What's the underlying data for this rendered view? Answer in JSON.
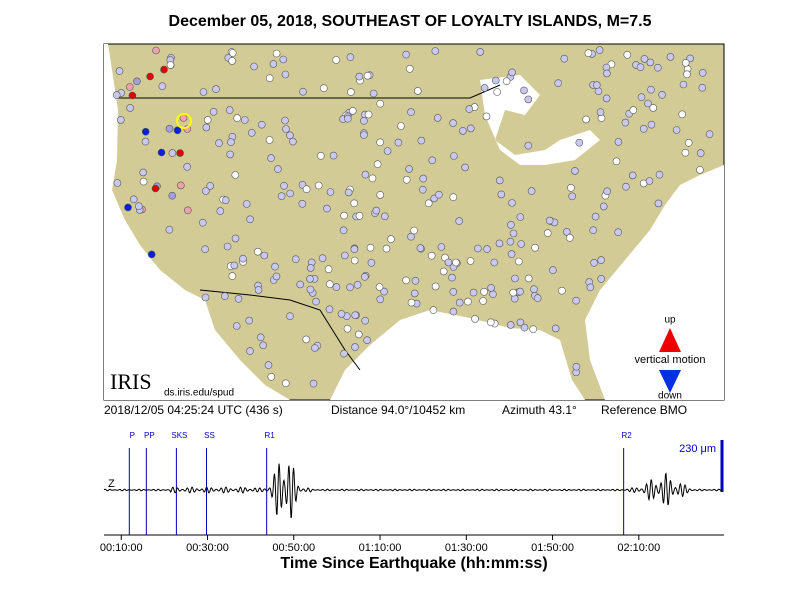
{
  "title": "December 05, 2018, SOUTHEAST OF LOYALTY ISLANDS, M=7.5",
  "map": {
    "logo": "IRIS",
    "url": "ds.iris.edu/spud",
    "legend": {
      "up": "up",
      "label": "vertical motion",
      "down": "down"
    }
  },
  "info": {
    "time": "2018/12/05 04:25:24 UTC (436 s)",
    "distance": "Distance  94.0°/10452 km",
    "azimuth": "Azimuth  43.1°",
    "reference": "Reference BMO"
  },
  "seismogram": {
    "channel": "Z",
    "scale": "230 μm",
    "xlabel": "Time Since Earthquake (hh:mm:ss)",
    "xlim": [
      360,
      8985
    ],
    "xticks": [
      {
        "value": 600,
        "label": "00:10:00"
      },
      {
        "value": 1800,
        "label": "00:30:00"
      },
      {
        "value": 3000,
        "label": "00:50:00"
      },
      {
        "value": 4200,
        "label": "01:10:00"
      },
      {
        "value": 5400,
        "label": "01:30:00"
      },
      {
        "value": 6600,
        "label": "01:50:00"
      },
      {
        "value": 7800,
        "label": "02:10:00"
      }
    ],
    "phases": [
      {
        "name": "P",
        "time": 712
      },
      {
        "name": "PP",
        "time": 949
      },
      {
        "name": "SKS",
        "time": 1367
      },
      {
        "name": "SS",
        "time": 1786
      },
      {
        "name": "R1",
        "time": 2623
      },
      {
        "name": "R2",
        "time": 7589
      }
    ]
  }
}
